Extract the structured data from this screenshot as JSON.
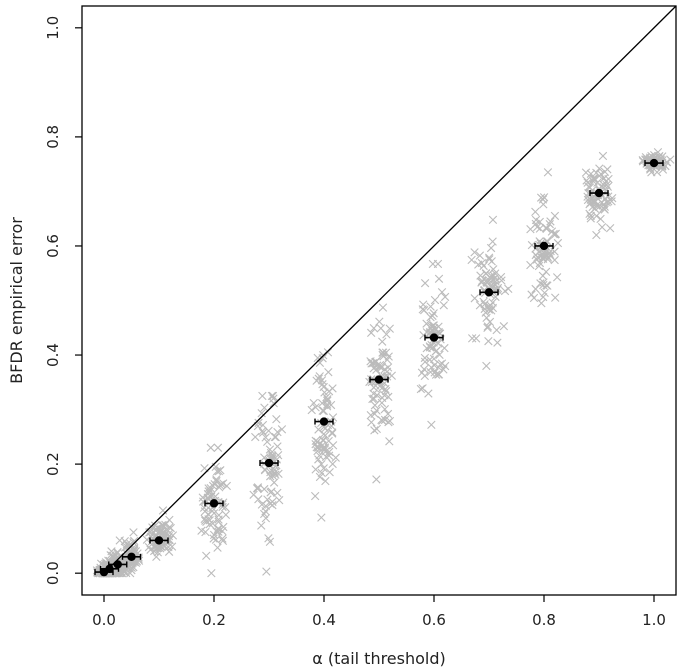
{
  "chart_data": {
    "type": "scatter",
    "title": "",
    "xlabel": "α (tail threshold)",
    "ylabel": "BFDR empirical error",
    "xlim": [
      -0.04,
      1.04
    ],
    "ylim": [
      -0.04,
      1.04
    ],
    "x_ticks": [
      "0.0",
      "0.2",
      "0.4",
      "0.6",
      "0.8",
      "1.0"
    ],
    "y_ticks": [
      "0.0",
      "0.2",
      "0.4",
      "0.6",
      "0.8",
      "1.0"
    ],
    "grid": false,
    "reference_line": {
      "from": [
        0,
        0
      ],
      "to": [
        1.04,
        1.04
      ],
      "color": "#000000"
    },
    "replicate_marker": "×",
    "series": [
      {
        "role": "replicates",
        "color": "#bbbbbb",
        "groups": [
          {
            "x": 0.0,
            "center": 0.002,
            "min": 0.0,
            "max": 0.02
          },
          {
            "x": 0.01,
            "center": 0.008,
            "min": 0.0,
            "max": 0.04
          },
          {
            "x": 0.025,
            "center": 0.016,
            "min": 0.0,
            "max": 0.06
          },
          {
            "x": 0.05,
            "center": 0.03,
            "min": 0.0,
            "max": 0.075
          },
          {
            "x": 0.1,
            "center": 0.06,
            "min": 0.03,
            "max": 0.115
          },
          {
            "x": 0.2,
            "center": 0.128,
            "min": 0.0,
            "max": 0.23
          },
          {
            "x": 0.3,
            "center": 0.202,
            "min": 0.003,
            "max": 0.325
          },
          {
            "x": 0.4,
            "center": 0.278,
            "min": 0.102,
            "max": 0.405
          },
          {
            "x": 0.5,
            "center": 0.355,
            "min": 0.172,
            "max": 0.487
          },
          {
            "x": 0.6,
            "center": 0.432,
            "min": 0.272,
            "max": 0.567
          },
          {
            "x": 0.7,
            "center": 0.515,
            "min": 0.38,
            "max": 0.648
          },
          {
            "x": 0.8,
            "center": 0.6,
            "min": 0.495,
            "max": 0.735
          },
          {
            "x": 0.9,
            "center": 0.697,
            "min": 0.62,
            "max": 0.765
          },
          {
            "x": 1.0,
            "center": 0.752,
            "min": 0.735,
            "max": 0.772
          }
        ]
      },
      {
        "role": "mean",
        "color": "#000000",
        "x": [
          0.0,
          0.01,
          0.025,
          0.05,
          0.1,
          0.2,
          0.3,
          0.4,
          0.5,
          0.6,
          0.7,
          0.8,
          0.9,
          1.0
        ],
        "y": [
          0.002,
          0.008,
          0.016,
          0.03,
          0.06,
          0.128,
          0.202,
          0.278,
          0.355,
          0.432,
          0.515,
          0.6,
          0.697,
          0.752
        ]
      }
    ]
  }
}
